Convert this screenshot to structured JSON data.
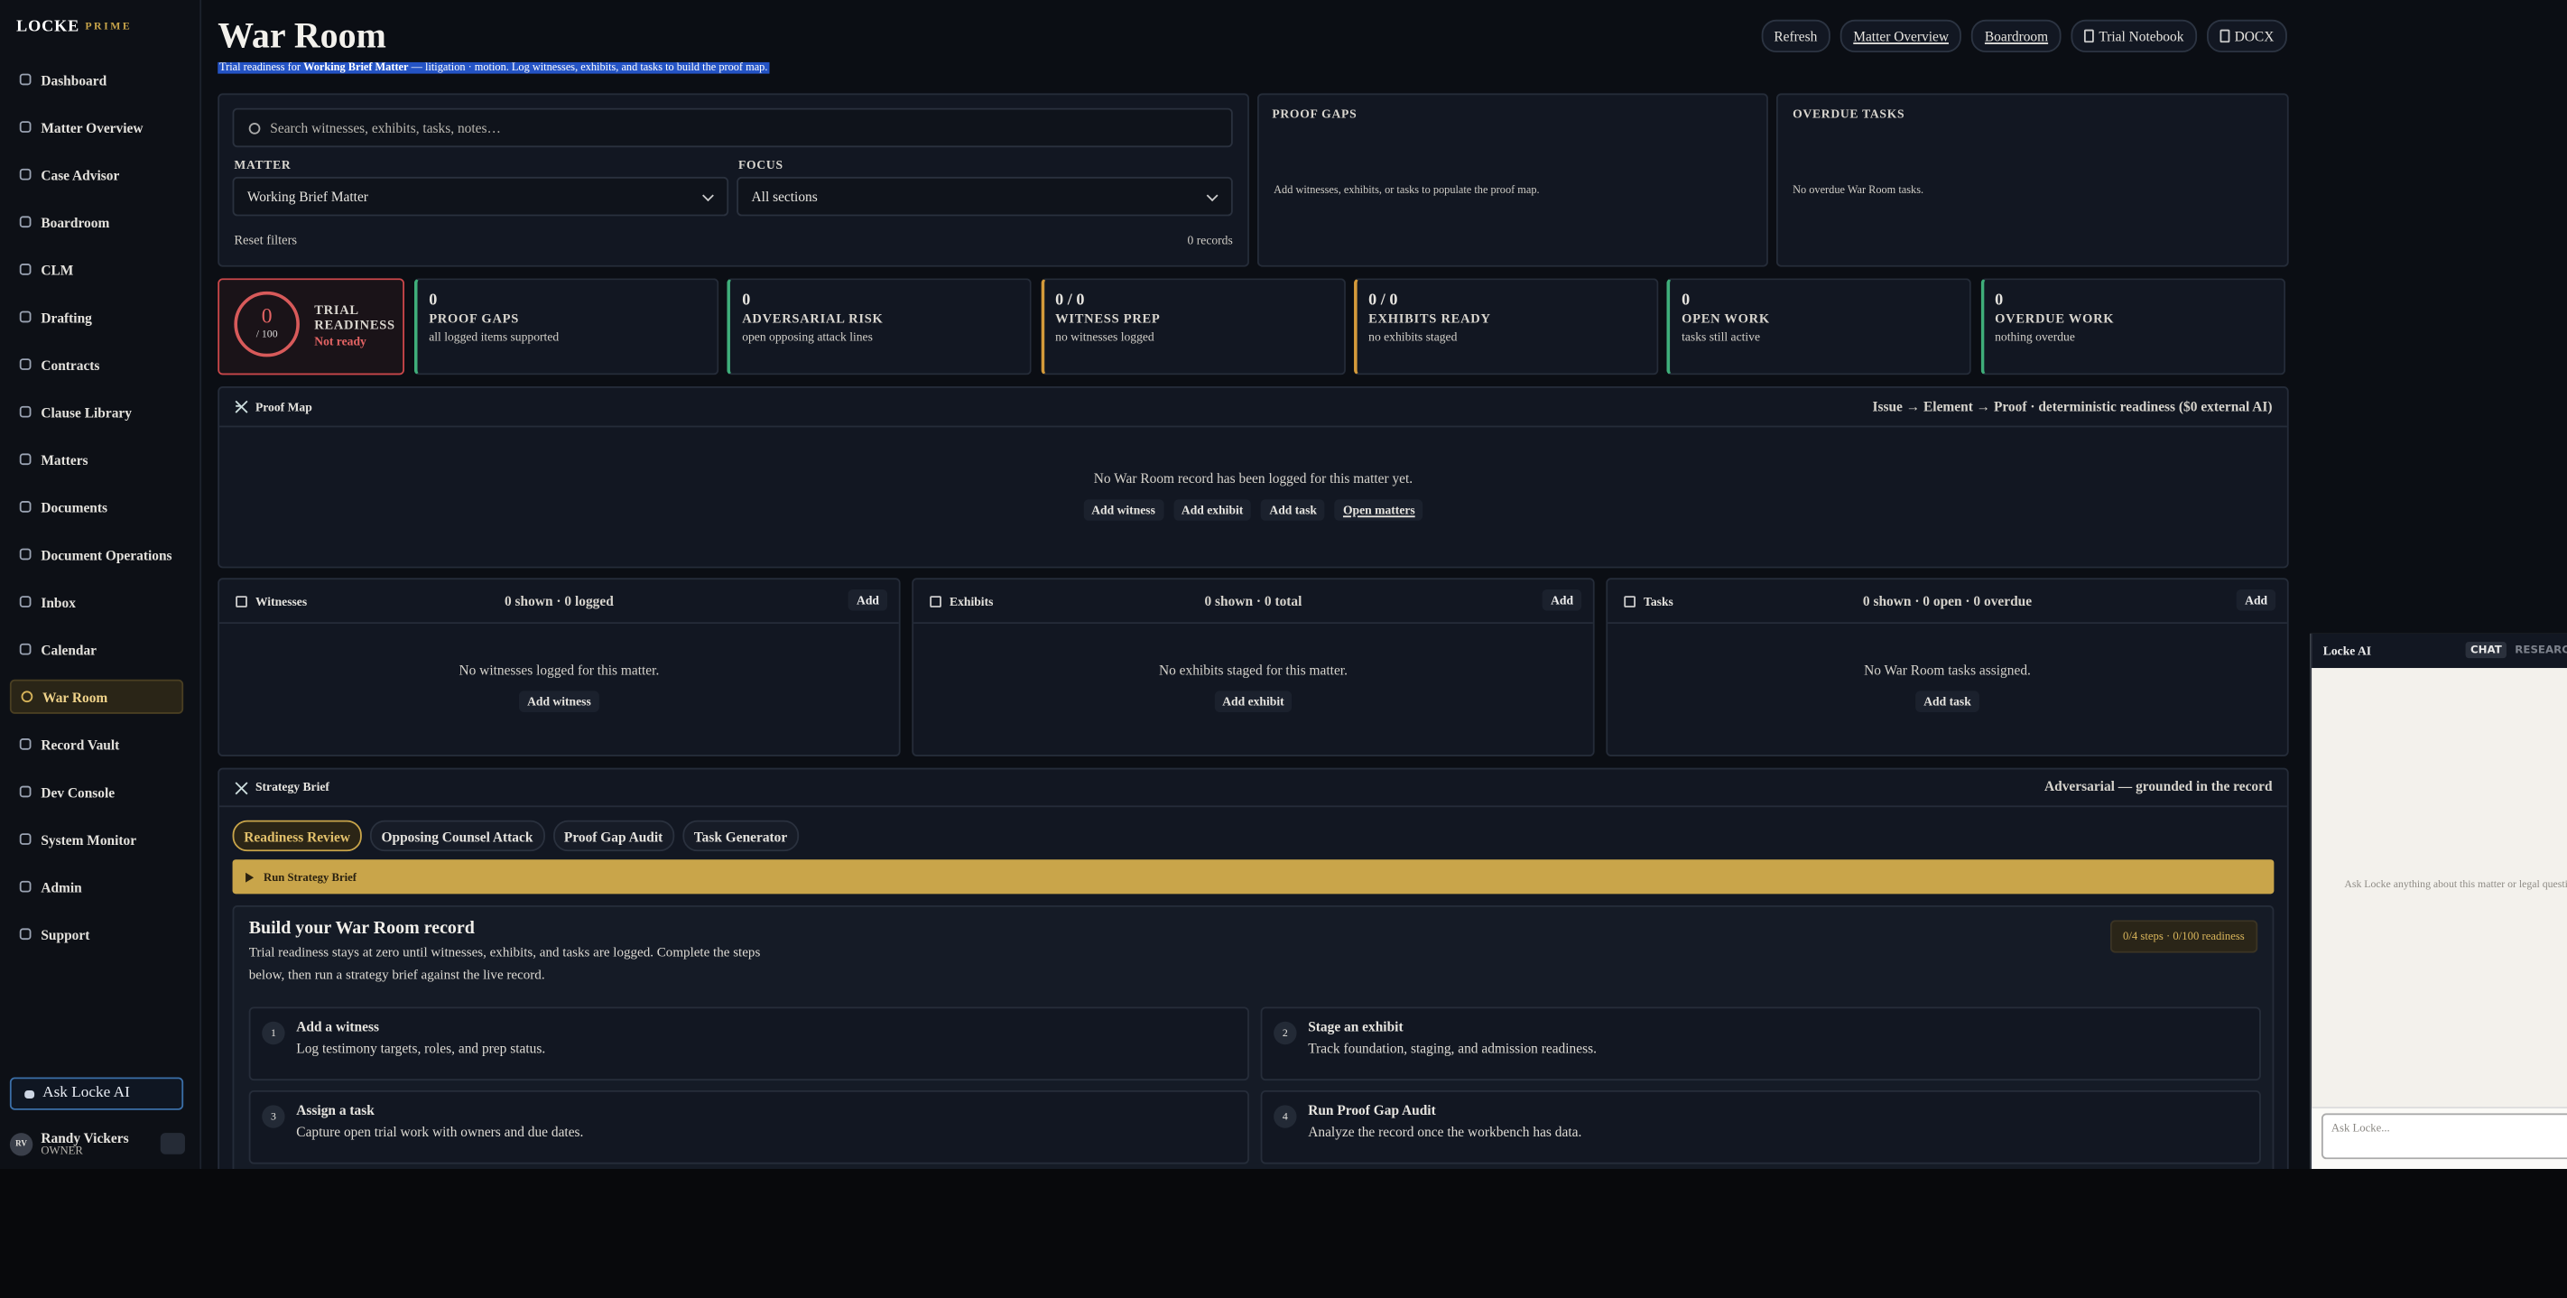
{
  "sidebar": {
    "brand": "LOCKE",
    "brand_sub": "PRIME",
    "nav": [
      "Dashboard",
      "Matter Overview",
      "Case Advisor",
      "Boardroom",
      "CLM",
      "Drafting",
      "Contracts",
      "Clause Library",
      "Matters",
      "Documents",
      "Document Operations",
      "Inbox",
      "Calendar",
      "War Room",
      "Record Vault",
      "Dev Console",
      "System Monitor",
      "Admin",
      "Support"
    ],
    "ask": "Ask Locke AI",
    "user": {
      "initials": "RV",
      "name": "Randy Vickers",
      "role": "OWNER"
    }
  },
  "header": {
    "title": "War Room",
    "subtitle_prefix": "Trial readiness for",
    "subtitle_matter": "Working Brief Matter",
    "subtitle_suffix": "— litigation · motion. Log witnesses, exhibits, and tasks to build the proof map.",
    "buttons": [
      {
        "label": "Refresh",
        "underlined": false,
        "icon": false
      },
      {
        "label": "Matter Overview",
        "underlined": true,
        "icon": false
      },
      {
        "label": "Boardroom",
        "underlined": true,
        "icon": false
      },
      {
        "label": "Trial Notebook",
        "underlined": false,
        "icon": true
      },
      {
        "label": "DOCX",
        "underlined": false,
        "icon": true
      }
    ]
  },
  "filters": {
    "search_placeholder": "Search witnesses, exhibits, tasks, notes…",
    "matter_label": "MATTER",
    "matter_value": "Working Brief Matter",
    "focus_label": "FOCUS",
    "focus_value": "All sections",
    "reset": "Reset filters",
    "records": "0 records"
  },
  "proof_gaps": {
    "title": "PROOF GAPS",
    "text": "Add witnesses, exhibits, or tasks to populate the proof map."
  },
  "overdue_tasks": {
    "title": "OVERDUE TASKS",
    "text": "No overdue War Room tasks."
  },
  "readiness": {
    "value": 0,
    "max": "/ 100",
    "label_1": "TRIAL",
    "label_2": "READINESS",
    "status": "Not ready"
  },
  "stats": [
    {
      "value": "0",
      "label": "PROOF GAPS",
      "note": "all logged items supported",
      "color": "#3fae7a"
    },
    {
      "value": "0",
      "label": "ADVERSARIAL RISK",
      "note": "open opposing attack lines",
      "color": "#3fae7a"
    },
    {
      "value": "0 / 0",
      "label": "WITNESS PREP",
      "note": "no witnesses logged",
      "color": "#d49a3a"
    },
    {
      "value": "0 / 0",
      "label": "EXHIBITS READY",
      "note": "no exhibits staged",
      "color": "#d49a3a"
    },
    {
      "value": "0",
      "label": "OPEN WORK",
      "note": "tasks still active",
      "color": "#3fae7a"
    },
    {
      "value": "0",
      "label": "OVERDUE WORK",
      "note": "nothing overdue",
      "color": "#3fae7a"
    }
  ],
  "proof_map": {
    "title": "Proof Map",
    "meta": "Issue → Element → Proof · deterministic readiness ($0 external AI)",
    "empty": "No War Room record has been logged for this matter yet.",
    "actions": [
      {
        "label": "Add witness",
        "underlined": false
      },
      {
        "label": "Add exhibit",
        "underlined": false
      },
      {
        "label": "Add task",
        "underlined": false
      },
      {
        "label": "Open matters",
        "underlined": true
      }
    ]
  },
  "panels": [
    {
      "title": "Witnesses",
      "count": "0 shown · 0 logged",
      "add": "Add",
      "empty": "No witnesses logged for this matter.",
      "action": "Add witness"
    },
    {
      "title": "Exhibits",
      "count": "0 shown · 0 total",
      "add": "Add",
      "empty": "No exhibits staged for this matter.",
      "action": "Add exhibit"
    },
    {
      "title": "Tasks",
      "count": "0 shown · 0 open · 0 overdue",
      "add": "Add",
      "empty": "No War Room tasks assigned.",
      "action": "Add task"
    }
  ],
  "strategy": {
    "title": "Strategy Brief",
    "meta": "Adversarial — grounded in the record",
    "tabs": [
      {
        "label": "Readiness Review",
        "active": true
      },
      {
        "label": "Opposing Counsel Attack",
        "active": false
      },
      {
        "label": "Proof Gap Audit",
        "active": false
      },
      {
        "label": "Task Generator",
        "active": false
      }
    ],
    "run": "Run Strategy Brief",
    "build_title": "Build your War Room record",
    "build_text": "Trial readiness stays at zero until witnesses, exhibits, and tasks are logged. Complete the steps below, then run a strategy brief against the live record.",
    "badge": "0/4 steps · 0/100 readiness",
    "steps": [
      {
        "number": 1,
        "title": "Add a witness",
        "text": "Log testimony targets, roles, and prep status."
      },
      {
        "number": 2,
        "title": "Stage an exhibit",
        "text": "Track foundation, staging, and admission readiness."
      },
      {
        "number": 3,
        "title": "Assign a task",
        "text": "Capture open trial work with owners and due dates."
      },
      {
        "number": 4,
        "title": "Run Proof Gap Audit",
        "text": "Analyze the record once the workbench has data."
      }
    ]
  },
  "chat": {
    "title": "Locke AI",
    "tabs": [
      {
        "label": "CHAT",
        "active": true
      },
      {
        "label": "RESEARCH",
        "active": false
      }
    ],
    "placeholder": "Ask Locke anything about this matter or legal questions.",
    "input": "Ask Locke..."
  }
}
